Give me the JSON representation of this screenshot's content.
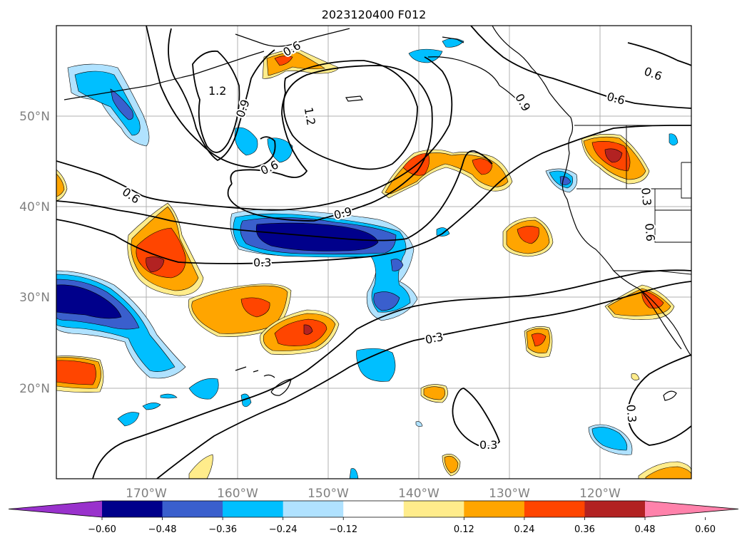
{
  "map": {
    "title": "2023120400 F012",
    "lon_labels": [
      "170°W",
      "160°W",
      "150°W",
      "140°W",
      "130°W",
      "120°W"
    ],
    "lat_labels": [
      "50°N",
      "40°N",
      "30°N",
      "20°N"
    ],
    "contour_labels": [
      "1.2",
      "1.2",
      "0.9",
      "0.9",
      "0.9",
      "0.6",
      "0.6",
      "0.6",
      "0.6",
      "0.6",
      "0.3",
      "0.3",
      "0.3",
      "0.3",
      "0.3",
      "0.6"
    ]
  },
  "colorbar": {
    "tick_labels": [
      "−0.60",
      "−0.48",
      "−0.36",
      "−0.24",
      "−0.12",
      "0.12",
      "0.24",
      "0.36",
      "0.48",
      "0.60"
    ],
    "colors": [
      "#9932cc",
      "#00008b",
      "#3a5fcd",
      "#00bfff",
      "#b0e2ff",
      "#ffffff",
      "#ffec8b",
      "#ffa500",
      "#ff4500",
      "#b22222",
      "#ff82ab"
    ]
  }
}
